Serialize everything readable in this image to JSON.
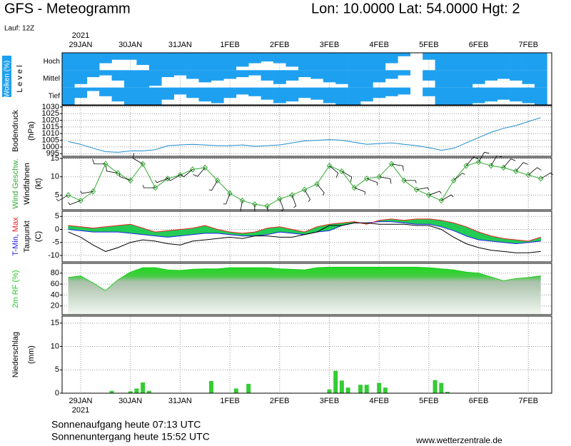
{
  "header": {
    "title": "GFS - Meteogramm",
    "location": "Lon: 10.0000 Lat: 54.0000 Hgt: 2",
    "run": "Lauf: 12Z"
  },
  "footer": {
    "sunrise": "Sonnenaufgang heute 07:13 UTC",
    "sunset": "Sonnenuntergang heute 15:52 UTC",
    "source": "www.wetterzentrale.de"
  },
  "chart_data": [
    {
      "type": "heatmap",
      "y_label": [
        "Wolken (%)",
        "L e v e l"
      ],
      "year": "2021",
      "xlim": [
        -0.373,
        9.47
      ],
      "xticks": [
        {
          "value": 0,
          "label": "29JAN"
        },
        {
          "value": 1,
          "label": "30JAN"
        },
        {
          "value": 2,
          "label": "31JAN"
        },
        {
          "value": 3,
          "label": "1FEB"
        },
        {
          "value": 4,
          "label": "2FEB"
        },
        {
          "value": 5,
          "label": "3FEB"
        },
        {
          "value": 6,
          "label": "4FEB"
        },
        {
          "value": 7,
          "label": "5FEB"
        },
        {
          "value": 8,
          "label": "6FEB"
        },
        {
          "value": 9,
          "label": "7FEB"
        }
      ],
      "categories": [
        "Hoch",
        "Mittel",
        "Tief"
      ],
      "color": "#1ea0f0",
      "x": [
        -0.25,
        0,
        0.25,
        0.5,
        0.75,
        1,
        1.25,
        1.5,
        1.75,
        2,
        2.25,
        2.5,
        2.75,
        3,
        3.25,
        3.5,
        3.75,
        4,
        4.25,
        4.5,
        4.75,
        5,
        5.25,
        5.5,
        5.75,
        6,
        6.25,
        6.5,
        6.75,
        7,
        7.25,
        7.5,
        7.75,
        8,
        8.25,
        8.5,
        8.75,
        9,
        9.25
      ],
      "values": [
        [
          100,
          100,
          100,
          60,
          40,
          40,
          70,
          100,
          100,
          100,
          100,
          100,
          100,
          100,
          80,
          60,
          50,
          60,
          80,
          100,
          100,
          100,
          100,
          100,
          100,
          100,
          60,
          20,
          0,
          40,
          100,
          100,
          100,
          100,
          100,
          100,
          100,
          100,
          100
        ],
        [
          100,
          80,
          40,
          30,
          60,
          100,
          100,
          90,
          40,
          30,
          50,
          70,
          60,
          50,
          40,
          30,
          60,
          80,
          60,
          40,
          50,
          70,
          80,
          100,
          100,
          70,
          50,
          30,
          0,
          60,
          100,
          100,
          100,
          80,
          60,
          50,
          60,
          80,
          100
        ],
        [
          100,
          60,
          20,
          50,
          80,
          100,
          100,
          100,
          70,
          40,
          60,
          80,
          90,
          60,
          40,
          50,
          70,
          90,
          80,
          60,
          70,
          90,
          100,
          100,
          80,
          60,
          50,
          40,
          0,
          50,
          100,
          100,
          100,
          90,
          80,
          70,
          80,
          90,
          100
        ]
      ]
    },
    {
      "type": "line",
      "y_label": [
        "Bodendruck",
        "(hPa)"
      ],
      "xlim": [
        -0.373,
        9.47
      ],
      "ylim": [
        993,
        1031
      ],
      "yticks": [
        995,
        1000,
        1005,
        1010,
        1015,
        1020,
        1025,
        1030
      ],
      "grid": true,
      "x": [
        -0.25,
        0,
        0.25,
        0.5,
        0.75,
        1,
        1.25,
        1.5,
        1.75,
        2,
        2.25,
        2.5,
        2.75,
        3,
        3.25,
        3.5,
        3.75,
        4,
        4.25,
        4.5,
        4.75,
        5,
        5.25,
        5.5,
        5.75,
        6,
        6.25,
        6.5,
        6.75,
        7,
        7.25,
        7.5,
        7.75,
        8,
        8.25,
        8.5,
        8.75,
        9,
        9.25
      ],
      "series": [
        {
          "color": "#1e8ccc",
          "values": [
            1004,
            1002,
            999,
            996.5,
            996,
            997,
            997,
            998,
            1001,
            1001.5,
            1002,
            1001.5,
            1001,
            1001,
            1001.5,
            1000.5,
            1001,
            1001.5,
            1003,
            1004.5,
            1005,
            1005.5,
            1005,
            1003.5,
            1002,
            1002.5,
            1003,
            1002,
            1001,
            999.5,
            997.5,
            999,
            1003,
            1007,
            1011,
            1014,
            1016,
            1019,
            1022
          ]
        }
      ]
    },
    {
      "type": "line",
      "y_label": [
        "(kt)"
      ],
      "xlim": [
        -0.373,
        9.47
      ],
      "ylim": [
        1,
        15.2
      ],
      "yticks": [
        5,
        10,
        15
      ],
      "grid": true,
      "x": [
        -0.25,
        0,
        0.25,
        0.5,
        0.75,
        1,
        1.25,
        1.5,
        1.75,
        2,
        2.25,
        2.5,
        2.75,
        3,
        3.25,
        3.5,
        3.75,
        4,
        4.25,
        4.5,
        4.75,
        5,
        5.25,
        5.5,
        5.75,
        6,
        6.25,
        6.5,
        6.75,
        7,
        7.25,
        7.5,
        7.75,
        8,
        8.25,
        8.5,
        8.75,
        9,
        9.25
      ],
      "series": [
        {
          "name": "Wind Geschw.",
          "color": "#33aa33",
          "marker": "diamond",
          "values": [
            5,
            3.5,
            6,
            13.5,
            11,
            9,
            13.5,
            7,
            9.5,
            10.5,
            12,
            12.5,
            9,
            5.5,
            3.5,
            2.5,
            2,
            4,
            5,
            6.5,
            8,
            13,
            11.5,
            7,
            9.5,
            10,
            13.5,
            9,
            6.5,
            5,
            3.5,
            9,
            13,
            14,
            13,
            12.5,
            11.5,
            10.5,
            9.5
          ]
        },
        {
          "name": "Windfahnen",
          "color": "#000000",
          "kind": "barb",
          "values": [
            240,
            250,
            260,
            270,
            280,
            290,
            300,
            270,
            250,
            240,
            230,
            220,
            210,
            200,
            190,
            180,
            170,
            160,
            160,
            150,
            140,
            130,
            120,
            110,
            110,
            100,
            100,
            90,
            80,
            70,
            60,
            50,
            40,
            30,
            30,
            40,
            40,
            50,
            60
          ]
        }
      ]
    },
    {
      "type": "band",
      "y_label": [
        "(C)"
      ],
      "xlim": [
        -0.373,
        9.47
      ],
      "ylim": [
        -12.5,
        7
      ],
      "yticks": [
        5,
        0,
        -5,
        -10
      ],
      "grid": true,
      "fill": "#22cc55",
      "x": [
        -0.25,
        0,
        0.25,
        0.5,
        0.75,
        1,
        1.25,
        1.5,
        1.75,
        2,
        2.25,
        2.5,
        2.75,
        3,
        3.25,
        3.5,
        3.75,
        4,
        4.25,
        4.5,
        4.75,
        5,
        5.25,
        5.5,
        5.75,
        6,
        6.25,
        6.5,
        6.75,
        7,
        7.25,
        7.5,
        7.75,
        8,
        8.25,
        8.5,
        8.75,
        9,
        9.25
      ],
      "series": [
        {
          "name": "T-Min,",
          "color": "#2222ee",
          "values": [
            0,
            -0.5,
            -1,
            -1,
            -1,
            -1.5,
            -2,
            -2.5,
            -3,
            -2.5,
            -2,
            -1.5,
            -1.5,
            -2,
            -2.5,
            -2.5,
            -2,
            -1,
            -1.5,
            -2,
            -1,
            -0.5,
            1.5,
            2.5,
            2.5,
            3,
            3,
            2.5,
            2,
            2,
            1,
            -0.5,
            -2.5,
            -4,
            -4.5,
            -5,
            -5.5,
            -5,
            -4.5
          ]
        },
        {
          "name": "Max",
          "color": "#ee2222",
          "values": [
            1.5,
            1,
            0.5,
            1,
            1.5,
            2,
            0.5,
            -1,
            -0.5,
            0,
            0.5,
            1.5,
            0,
            -1,
            -1.5,
            -1,
            0.5,
            1,
            0,
            -1,
            1,
            2,
            2.5,
            3,
            2,
            3.5,
            4,
            3.5,
            4,
            4,
            3.5,
            2.5,
            1,
            -1,
            -2.5,
            -3.5,
            -4,
            -4.5,
            -3
          ]
        },
        {
          "name": "Taupunkt",
          "color": "#000000",
          "values": [
            -1,
            -3,
            -6,
            -8.5,
            -7,
            -5,
            -4,
            -4.5,
            -5.5,
            -6,
            -4.5,
            -4,
            -3.5,
            -3,
            -3.5,
            -2.5,
            -2.5,
            -3,
            -3,
            -2,
            -1,
            1.5,
            1.5,
            2.5,
            2.5,
            2,
            2,
            2,
            1.5,
            1.5,
            0,
            -3,
            -5.5,
            -7,
            -8,
            -8.5,
            -9,
            -9,
            -8.5
          ]
        }
      ]
    },
    {
      "type": "area",
      "y_label": [
        "2m RF (%)"
      ],
      "xlim": [
        -0.373,
        9.47
      ],
      "ylim": [
        4,
        98
      ],
      "yticks": [
        20,
        40,
        60,
        80
      ],
      "grid": true,
      "color": "#22cc22",
      "x": [
        -0.25,
        0,
        0.25,
        0.5,
        0.75,
        1,
        1.25,
        1.5,
        1.75,
        2,
        2.25,
        2.5,
        2.75,
        3,
        3.25,
        3.5,
        3.75,
        4,
        4.25,
        4.5,
        4.75,
        5,
        5.25,
        5.5,
        5.75,
        6,
        6.25,
        6.5,
        6.75,
        7,
        7.25,
        7.5,
        7.75,
        8,
        8.25,
        8.5,
        8.75,
        9,
        9.25
      ],
      "values": [
        72,
        75,
        62,
        48,
        68,
        82,
        90,
        90,
        86,
        85,
        87,
        88,
        88,
        90,
        90,
        90,
        90,
        88,
        87,
        86,
        90,
        91,
        91,
        91,
        91,
        91,
        91,
        91,
        91,
        90,
        88,
        86,
        82,
        80,
        73,
        66,
        70,
        72,
        75
      ]
    },
    {
      "type": "bar",
      "y_label": [
        "Niederschlag",
        "(mm)"
      ],
      "year": "2021",
      "xlim": [
        -0.373,
        9.47
      ],
      "ylim": [
        0,
        16.5
      ],
      "yticks": [
        0,
        5,
        10,
        15
      ],
      "grid": true,
      "color": "#33cc33",
      "xticks": [
        {
          "value": 0,
          "label": "29JAN"
        },
        {
          "value": 1,
          "label": "30JAN"
        },
        {
          "value": 2,
          "label": "31JAN"
        },
        {
          "value": 3,
          "label": "1FEB"
        },
        {
          "value": 4,
          "label": "2FEB"
        },
        {
          "value": 5,
          "label": "3FEB"
        },
        {
          "value": 6,
          "label": "4FEB"
        },
        {
          "value": 7,
          "label": "5FEB"
        },
        {
          "value": 8,
          "label": "6FEB"
        },
        {
          "value": 9,
          "label": "7FEB"
        }
      ],
      "x": [
        0.625,
        1,
        1.125,
        1.25,
        1.375,
        2.625,
        3.125,
        3.375,
        5,
        5.125,
        5.25,
        5.375,
        5.625,
        5.75,
        6,
        6.125,
        7.125,
        7.25,
        7.375
      ],
      "values": [
        0.5,
        0.4,
        1,
        2.3,
        0.5,
        2.6,
        1,
        2,
        0.8,
        4.8,
        2.7,
        1.2,
        1.8,
        1.8,
        2.2,
        1.2,
        2.8,
        2.2,
        0.3
      ]
    }
  ]
}
